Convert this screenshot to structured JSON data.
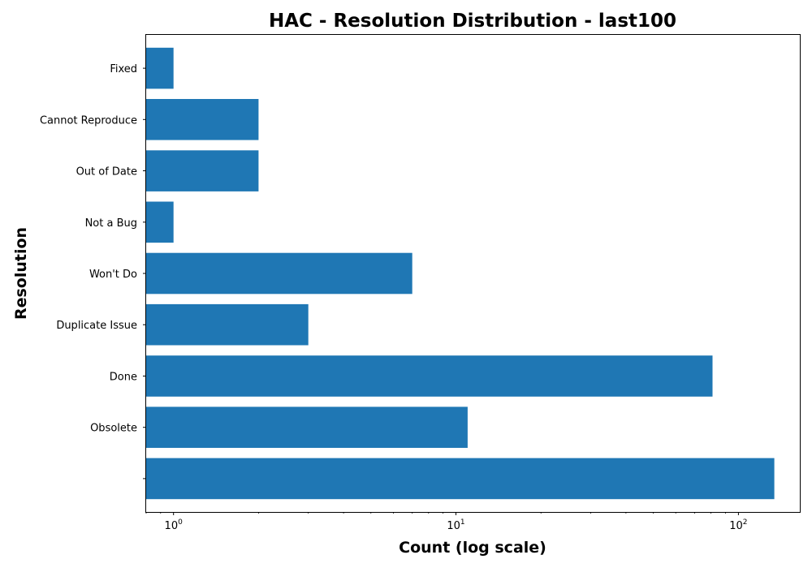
{
  "chart_data": {
    "type": "bar",
    "orientation": "horizontal",
    "title": "HAC - Resolution Distribution - last100",
    "xlabel": "Count (log scale)",
    "ylabel": "Resolution",
    "xscale": "log",
    "xlim": [
      0.8,
      165
    ],
    "xticks": [
      {
        "value": 1,
        "base": "10",
        "exp": "0"
      },
      {
        "value": 10,
        "base": "10",
        "exp": "1"
      },
      {
        "value": 100,
        "base": "10",
        "exp": "2"
      }
    ],
    "categories": [
      "",
      "Obsolete",
      "Done",
      "Duplicate Issue",
      "Won't Do",
      "Not a Bug",
      "Out of Date",
      "Cannot Reproduce",
      "Fixed"
    ],
    "values": [
      134,
      11,
      81,
      3,
      7,
      1,
      2,
      2,
      1
    ],
    "bar_color": "#1f77b4",
    "grid": false,
    "legend": "none"
  }
}
